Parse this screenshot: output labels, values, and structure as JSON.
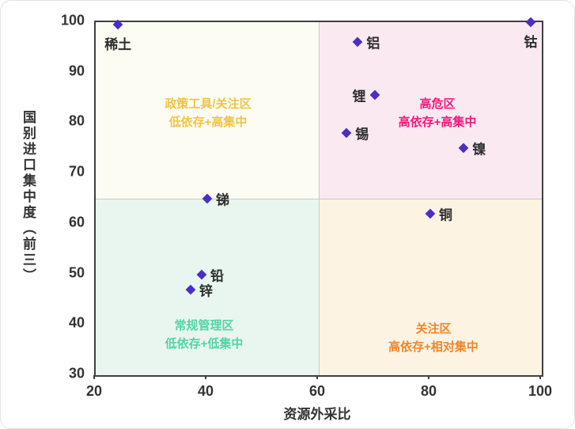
{
  "chart_data": {
    "type": "scatter",
    "xlabel": "资源外采比",
    "ylabel": "国别进口集中度（前三）",
    "xlim": [
      20,
      100
    ],
    "ylim": [
      30,
      100
    ],
    "x_ticks": [
      "20",
      "40",
      "60",
      "80",
      "100"
    ],
    "x_tick_values": [
      20,
      40,
      60,
      80,
      100
    ],
    "y_ticks": [
      "30",
      "40",
      "50",
      "60",
      "70",
      "80",
      "90",
      "100"
    ],
    "y_tick_values": [
      30,
      40,
      50,
      60,
      70,
      80,
      90,
      100
    ],
    "divider_x": 60,
    "divider_y": 65,
    "marker": "diamond",
    "point_color": "#4a2ec6",
    "points": [
      {
        "label": "稀土",
        "x": 24,
        "y": 99.5,
        "label_pos": "below"
      },
      {
        "label": "钴",
        "x": 98,
        "y": 100,
        "label_pos": "below"
      },
      {
        "label": "铝",
        "x": 67,
        "y": 96,
        "label_pos": "right"
      },
      {
        "label": "锂",
        "x": 70,
        "y": 85.5,
        "label_pos": "left"
      },
      {
        "label": "锡",
        "x": 65,
        "y": 78,
        "label_pos": "right"
      },
      {
        "label": "镍",
        "x": 86,
        "y": 75,
        "label_pos": "right"
      },
      {
        "label": "锑",
        "x": 40,
        "y": 65,
        "label_pos": "right"
      },
      {
        "label": "铜",
        "x": 80,
        "y": 62,
        "label_pos": "right"
      },
      {
        "label": "铅",
        "x": 39,
        "y": 50,
        "label_pos": "right"
      },
      {
        "label": "锌",
        "x": 37,
        "y": 47,
        "label_pos": "right"
      }
    ],
    "quadrants": [
      {
        "id": "top-left",
        "line1": "政策工具/关注区",
        "line2": "低依存+高集中",
        "text_color": "#f0c342",
        "bg": "#fcfcf3"
      },
      {
        "id": "top-right",
        "line1": "高危区",
        "line2": "高依存+高集中",
        "text_color": "#f2187d",
        "bg": "#fbe9f1"
      },
      {
        "id": "bottom-left",
        "line1": "常规管理区",
        "line2": "低依存+低集中",
        "text_color": "#4fd6a4",
        "bg": "#e8f6ef"
      },
      {
        "id": "bottom-right",
        "line1": "关注区",
        "line2": "高依存+相对集中",
        "text_color": "#f0862a",
        "bg": "#fcf3e3"
      }
    ],
    "grid": false,
    "legend": "none"
  },
  "colors": {
    "plot_border": "#3f3f3f",
    "divider": "#c9c9c9",
    "tick_text": "#333333",
    "point_label_text": "#2e2e2e",
    "card_border": "#e3e3e3"
  }
}
